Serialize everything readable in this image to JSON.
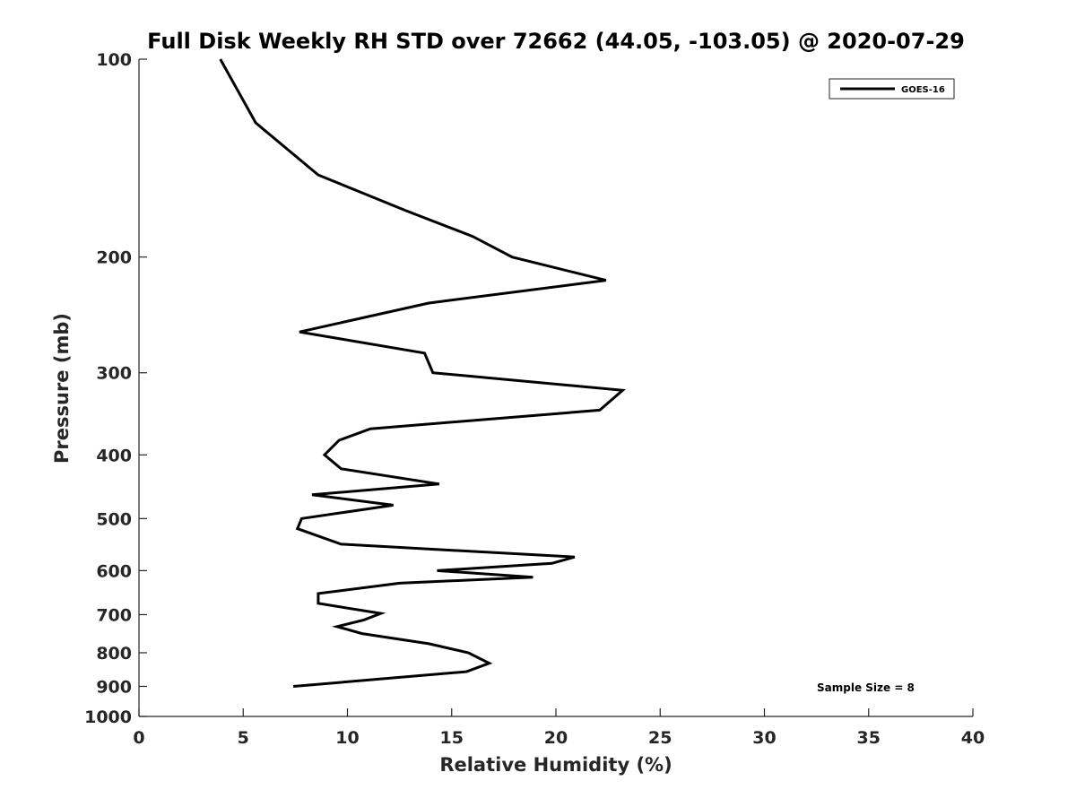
{
  "chart_data": {
    "type": "line",
    "title": "Full Disk Weekly RH STD over 72662 (44.05, -103.05) @ 2020-07-29",
    "xlabel": "Relative Humidity (%)",
    "ylabel": "Pressure (mb)",
    "xlim": [
      0,
      40
    ],
    "ylim": [
      1000,
      100
    ],
    "yscale": "log",
    "y_reversed": true,
    "xticks": [
      0,
      5,
      10,
      15,
      20,
      25,
      30,
      35,
      40
    ],
    "yticks": [
      100,
      200,
      300,
      400,
      500,
      600,
      700,
      800,
      900,
      1000
    ],
    "grid": false,
    "legend_position": "top-right",
    "annotation": "Sample Size = 8",
    "series": [
      {
        "name": "GOES-16",
        "color": "#000000",
        "points": [
          {
            "x": 3.9,
            "y": 100
          },
          {
            "x": 5.6,
            "y": 125
          },
          {
            "x": 8.6,
            "y": 150
          },
          {
            "x": 12.8,
            "y": 170
          },
          {
            "x": 16.0,
            "y": 186
          },
          {
            "x": 17.9,
            "y": 200
          },
          {
            "x": 22.4,
            "y": 217
          },
          {
            "x": 13.9,
            "y": 235
          },
          {
            "x": 7.7,
            "y": 260
          },
          {
            "x": 13.7,
            "y": 280
          },
          {
            "x": 14.1,
            "y": 300
          },
          {
            "x": 23.2,
            "y": 319
          },
          {
            "x": 22.1,
            "y": 342
          },
          {
            "x": 11.1,
            "y": 365
          },
          {
            "x": 9.6,
            "y": 380
          },
          {
            "x": 8.9,
            "y": 400
          },
          {
            "x": 9.7,
            "y": 420
          },
          {
            "x": 14.4,
            "y": 443
          },
          {
            "x": 8.3,
            "y": 460
          },
          {
            "x": 12.2,
            "y": 477
          },
          {
            "x": 7.8,
            "y": 500
          },
          {
            "x": 7.6,
            "y": 518
          },
          {
            "x": 9.7,
            "y": 547
          },
          {
            "x": 20.9,
            "y": 572
          },
          {
            "x": 19.8,
            "y": 585
          },
          {
            "x": 14.3,
            "y": 600
          },
          {
            "x": 18.9,
            "y": 614
          },
          {
            "x": 12.5,
            "y": 627
          },
          {
            "x": 8.6,
            "y": 650
          },
          {
            "x": 8.6,
            "y": 673
          },
          {
            "x": 11.6,
            "y": 697
          },
          {
            "x": 10.8,
            "y": 713
          },
          {
            "x": 9.5,
            "y": 730
          },
          {
            "x": 10.7,
            "y": 748
          },
          {
            "x": 13.9,
            "y": 775
          },
          {
            "x": 15.8,
            "y": 800
          },
          {
            "x": 16.8,
            "y": 830
          },
          {
            "x": 15.7,
            "y": 855
          },
          {
            "x": 7.4,
            "y": 900
          }
        ]
      }
    ]
  }
}
